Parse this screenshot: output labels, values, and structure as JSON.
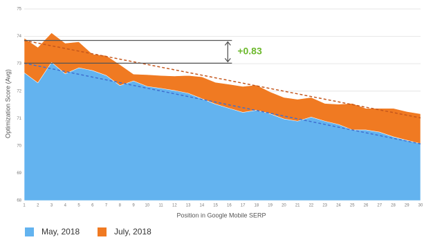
{
  "chart_data": {
    "type": "area",
    "x_label": "Position in Google Mobile SERP",
    "y_label": "Optimization Score (Avg)",
    "x": [
      1,
      2,
      3,
      4,
      5,
      6,
      7,
      8,
      9,
      10,
      11,
      12,
      13,
      14,
      15,
      16,
      17,
      18,
      19,
      20,
      21,
      22,
      23,
      24,
      25,
      26,
      27,
      28,
      29,
      30
    ],
    "xlim": [
      1,
      30
    ],
    "xticks": [
      1,
      2,
      3,
      4,
      5,
      6,
      7,
      8,
      9,
      10,
      11,
      12,
      13,
      14,
      15,
      16,
      17,
      18,
      19,
      20,
      21,
      22,
      23,
      24,
      25,
      26,
      27,
      28,
      29,
      30
    ],
    "ylim": [
      68,
      75
    ],
    "yticks": [
      68,
      69,
      70,
      71,
      72,
      73,
      74,
      75
    ],
    "grid": true,
    "legend": "bottom-left",
    "series": [
      {
        "name": "July, 2018",
        "color": "#f07a22",
        "trend_color": "#c4561c",
        "values": [
          73.94,
          73.6,
          74.13,
          73.75,
          73.8,
          73.35,
          73.3,
          72.97,
          72.62,
          72.6,
          72.57,
          72.55,
          72.57,
          72.52,
          72.32,
          72.25,
          72.17,
          72.22,
          71.97,
          71.77,
          71.7,
          71.77,
          71.55,
          71.52,
          71.55,
          71.37,
          71.37,
          71.37,
          71.25,
          71.17
        ],
        "trend": [
          73.85,
          71.02
        ]
      },
      {
        "name": "May, 2018",
        "color": "#63b3ef",
        "trend_color": "#3f6fcf",
        "values": [
          72.67,
          72.3,
          73.05,
          72.63,
          72.85,
          72.75,
          72.57,
          72.2,
          72.37,
          72.17,
          72.1,
          72.02,
          71.92,
          71.72,
          71.52,
          71.37,
          71.22,
          71.3,
          71.17,
          70.98,
          70.9,
          71.05,
          70.9,
          70.78,
          70.58,
          70.58,
          70.5,
          70.33,
          70.2,
          70.08
        ],
        "trend": [
          73.02,
          70.07
        ]
      }
    ],
    "annotation": {
      "text": "+0.83",
      "color": "#6cb82c",
      "from": 73.02,
      "to": 73.85,
      "x_end": 16.2
    }
  }
}
